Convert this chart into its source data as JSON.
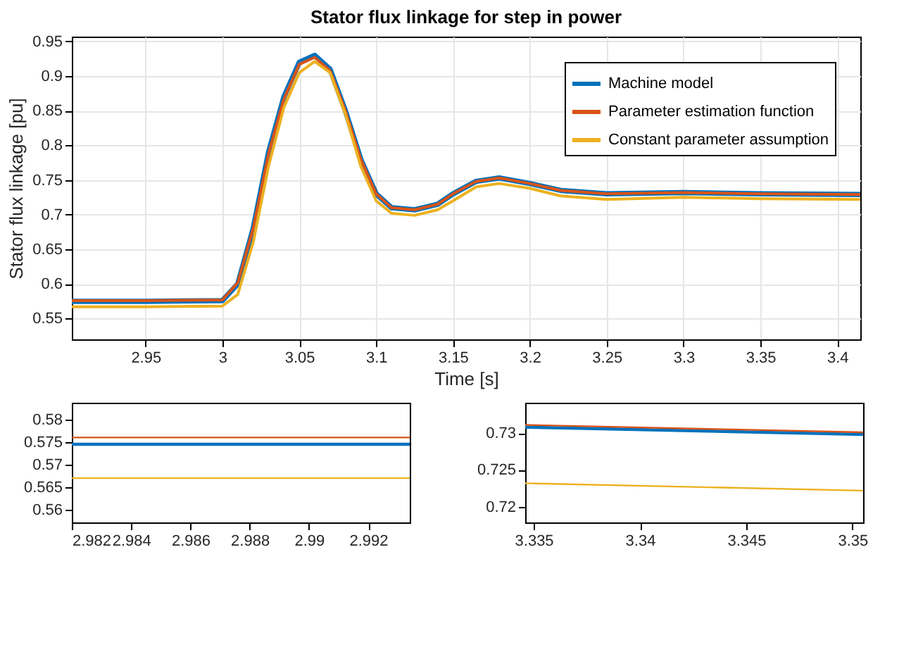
{
  "chart_data": [
    {
      "type": "line",
      "title": "Stator flux linkage for step in power",
      "xlabel": "Time [s]",
      "ylabel": "Stator flux linkage [pu]",
      "x": [
        2.902,
        2.95,
        3.0,
        3.01,
        3.02,
        3.03,
        3.04,
        3.05,
        3.06,
        3.07,
        3.08,
        3.09,
        3.1,
        3.11,
        3.125,
        3.14,
        3.15,
        3.165,
        3.18,
        3.2,
        3.22,
        3.25,
        3.3,
        3.35,
        3.415
      ],
      "series": [
        {
          "name": "Machine model",
          "color": "#0072bd",
          "values": [
            0.575,
            0.575,
            0.576,
            0.6,
            0.68,
            0.79,
            0.87,
            0.92,
            0.93,
            0.91,
            0.85,
            0.78,
            0.73,
            0.71,
            0.707,
            0.715,
            0.73,
            0.748,
            0.753,
            0.745,
            0.735,
            0.73,
            0.732,
            0.73,
            0.729
          ]
        },
        {
          "name": "Parameter estimation function",
          "color": "#d95319",
          "values": [
            0.576,
            0.576,
            0.577,
            0.602,
            0.68,
            0.788,
            0.867,
            0.917,
            0.927,
            0.908,
            0.85,
            0.78,
            0.73,
            0.71,
            0.707,
            0.715,
            0.73,
            0.748,
            0.753,
            0.745,
            0.735,
            0.73,
            0.732,
            0.73,
            0.729
          ]
        },
        {
          "name": "Constant parameter assumption",
          "color": "#edb120",
          "values": [
            0.567,
            0.567,
            0.568,
            0.585,
            0.66,
            0.77,
            0.855,
            0.905,
            0.921,
            0.905,
            0.845,
            0.77,
            0.72,
            0.702,
            0.699,
            0.707,
            0.72,
            0.74,
            0.745,
            0.738,
            0.727,
            0.722,
            0.725,
            0.723,
            0.722
          ]
        }
      ],
      "xlim": [
        2.902,
        3.415
      ],
      "xticks": [
        2.95,
        3,
        3.05,
        3.1,
        3.15,
        3.2,
        3.25,
        3.3,
        3.35,
        3.4
      ],
      "ylim": [
        0.52,
        0.957
      ],
      "yticks": [
        0.55,
        0.6,
        0.65,
        0.7,
        0.75,
        0.8,
        0.85,
        0.9,
        0.95
      ],
      "grid": true,
      "legend": "top right"
    },
    {
      "type": "line",
      "x": [
        2.982,
        2.9934
      ],
      "series": [
        {
          "color": "#0072bd",
          "values": [
            0.5745,
            0.5745
          ]
        },
        {
          "color": "#d95319",
          "values": [
            0.576,
            0.576
          ]
        },
        {
          "color": "#edb120",
          "values": [
            0.567,
            0.567
          ]
        }
      ],
      "xlim": [
        2.982,
        2.9934
      ],
      "xticks": [
        2.982,
        2.984,
        2.986,
        2.988,
        2.99,
        2.992
      ],
      "ylim": [
        0.5572,
        0.5837
      ],
      "yticks": [
        0.56,
        0.565,
        0.57,
        0.575,
        0.58
      ]
    },
    {
      "type": "line",
      "x": [
        3.3346,
        3.3505
      ],
      "series": [
        {
          "color": "#0072bd",
          "values": [
            0.7308,
            0.7298
          ]
        },
        {
          "color": "#d95319",
          "values": [
            0.7311,
            0.7301
          ]
        },
        {
          "color": "#edb120",
          "values": [
            0.7232,
            0.7222
          ]
        }
      ],
      "xlim": [
        3.3346,
        3.3505
      ],
      "xticks": [
        3.335,
        3.34,
        3.345,
        3.35
      ],
      "ylim": [
        0.7179,
        0.7341
      ],
      "yticks": [
        0.72,
        0.725,
        0.73
      ]
    }
  ]
}
